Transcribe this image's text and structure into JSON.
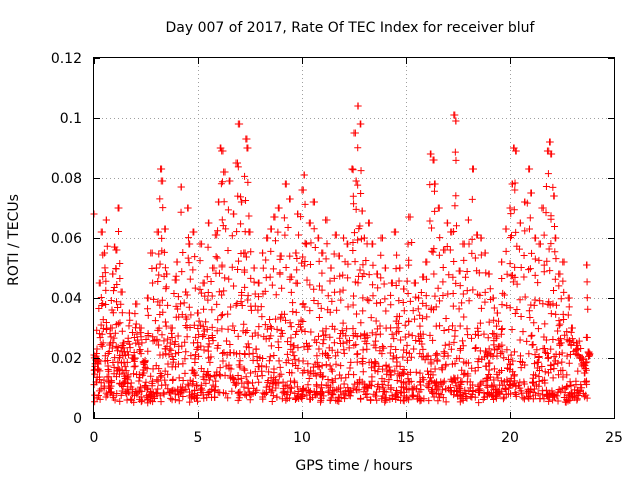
{
  "chart_data": {
    "type": "scatter",
    "title": "Day 007 of 2017, Rate Of TEC Index for receiver bluf",
    "xlabel": "GPS time / hours",
    "ylabel": "ROTI / TECUs",
    "xlim": [
      0,
      25
    ],
    "ylim": [
      0,
      0.12
    ],
    "xticks": [
      0,
      5,
      10,
      15,
      20,
      25
    ],
    "xtick_labels": [
      "0",
      "5",
      "10",
      "15",
      "20",
      "25"
    ],
    "yticks": [
      0,
      0.02,
      0.04,
      0.06,
      0.08,
      0.1,
      0.12
    ],
    "ytick_labels": [
      "0",
      "0.02",
      "0.04",
      "0.06",
      "0.08",
      "0.1",
      "0.12"
    ],
    "grid": true,
    "marker": "plus",
    "color": "#ff0000",
    "series": [
      {
        "points": [
          [
            0.0,
            0.068
          ],
          [
            0.1,
            0.012
          ],
          [
            0.2,
            0.018
          ],
          [
            0.3,
            0.045
          ],
          [
            0.4,
            0.062
          ],
          [
            0.5,
            0.055
          ],
          [
            0.6,
            0.066
          ],
          [
            0.7,
            0.01
          ],
          [
            0.8,
            0.03
          ],
          [
            0.9,
            0.048
          ],
          [
            1.0,
            0.057
          ],
          [
            1.1,
            0.056
          ],
          [
            1.2,
            0.07
          ],
          [
            1.3,
            0.042
          ],
          [
            1.4,
            0.025
          ],
          [
            1.5,
            0.012
          ],
          [
            1.7,
            0.035
          ],
          [
            1.9,
            0.02
          ],
          [
            2.0,
            0.038
          ],
          [
            2.2,
            0.03
          ],
          [
            2.4,
            0.015
          ],
          [
            2.6,
            0.04
          ],
          [
            2.8,
            0.055
          ],
          [
            3.0,
            0.05
          ],
          [
            3.1,
            0.062
          ],
          [
            3.2,
            0.083
          ],
          [
            3.3,
            0.079
          ],
          [
            3.4,
            0.063
          ],
          [
            3.5,
            0.048
          ],
          [
            3.7,
            0.03
          ],
          [
            3.9,
            0.046
          ],
          [
            4.0,
            0.052
          ],
          [
            4.2,
            0.077
          ],
          [
            4.4,
            0.042
          ],
          [
            4.5,
            0.07
          ],
          [
            4.6,
            0.058
          ],
          [
            4.8,
            0.062
          ],
          [
            5.0,
            0.035
          ],
          [
            5.1,
            0.058
          ],
          [
            5.3,
            0.045
          ],
          [
            5.5,
            0.065
          ],
          [
            5.7,
            0.05
          ],
          [
            5.9,
            0.061
          ],
          [
            6.0,
            0.072
          ],
          [
            6.1,
            0.09
          ],
          [
            6.2,
            0.089
          ],
          [
            6.3,
            0.082
          ],
          [
            6.5,
            0.079
          ],
          [
            6.7,
            0.068
          ],
          [
            6.9,
            0.085
          ],
          [
            7.0,
            0.098
          ],
          [
            7.1,
            0.072
          ],
          [
            7.2,
            0.055
          ],
          [
            7.3,
            0.093
          ],
          [
            7.4,
            0.09
          ],
          [
            7.5,
            0.062
          ],
          [
            7.7,
            0.05
          ],
          [
            7.9,
            0.045
          ],
          [
            8.1,
            0.055
          ],
          [
            8.3,
            0.06
          ],
          [
            8.5,
            0.063
          ],
          [
            8.7,
            0.067
          ],
          [
            8.9,
            0.07
          ],
          [
            9.0,
            0.054
          ],
          [
            9.2,
            0.078
          ],
          [
            9.4,
            0.073
          ],
          [
            9.5,
            0.047
          ],
          [
            9.7,
            0.055
          ],
          [
            9.8,
            0.068
          ],
          [
            10.0,
            0.076
          ],
          [
            10.1,
            0.081
          ],
          [
            10.2,
            0.058
          ],
          [
            10.4,
            0.065
          ],
          [
            10.6,
            0.072
          ],
          [
            10.8,
            0.06
          ],
          [
            11.0,
            0.055
          ],
          [
            11.2,
            0.066
          ],
          [
            11.4,
            0.05
          ],
          [
            11.6,
            0.061
          ],
          [
            11.8,
            0.054
          ],
          [
            12.0,
            0.06
          ],
          [
            12.2,
            0.058
          ],
          [
            12.4,
            0.083
          ],
          [
            12.5,
            0.095
          ],
          [
            12.6,
            0.079
          ],
          [
            12.7,
            0.104
          ],
          [
            12.8,
            0.098
          ],
          [
            12.9,
            0.069
          ],
          [
            13.0,
            0.06
          ],
          [
            13.2,
            0.065
          ],
          [
            13.4,
            0.058
          ],
          [
            13.6,
            0.048
          ],
          [
            13.8,
            0.06
          ],
          [
            14.0,
            0.05
          ],
          [
            14.3,
            0.045
          ],
          [
            14.5,
            0.062
          ],
          [
            14.7,
            0.05
          ],
          [
            14.9,
            0.043
          ],
          [
            15.1,
            0.058
          ],
          [
            15.2,
            0.067
          ],
          [
            15.4,
            0.045
          ],
          [
            15.6,
            0.04
          ],
          [
            15.8,
            0.047
          ],
          [
            16.0,
            0.052
          ],
          [
            16.2,
            0.088
          ],
          [
            16.3,
            0.086
          ],
          [
            16.4,
            0.078
          ],
          [
            16.6,
            0.07
          ],
          [
            16.8,
            0.056
          ],
          [
            17.0,
            0.065
          ],
          [
            17.2,
            0.062
          ],
          [
            17.3,
            0.101
          ],
          [
            17.4,
            0.099
          ],
          [
            17.6,
            0.049
          ],
          [
            17.8,
            0.058
          ],
          [
            18.0,
            0.066
          ],
          [
            18.2,
            0.083
          ],
          [
            18.4,
            0.061
          ],
          [
            18.6,
            0.06
          ],
          [
            18.8,
            0.055
          ],
          [
            19.0,
            0.048
          ],
          [
            19.2,
            0.04
          ],
          [
            19.4,
            0.035
          ],
          [
            19.6,
            0.052
          ],
          [
            19.8,
            0.063
          ],
          [
            20.0,
            0.07
          ],
          [
            20.1,
            0.078
          ],
          [
            20.2,
            0.09
          ],
          [
            20.3,
            0.089
          ],
          [
            20.5,
            0.065
          ],
          [
            20.7,
            0.072
          ],
          [
            20.9,
            0.083
          ],
          [
            21.0,
            0.075
          ],
          [
            21.2,
            0.06
          ],
          [
            21.4,
            0.058
          ],
          [
            21.6,
            0.07
          ],
          [
            21.8,
            0.089
          ],
          [
            21.9,
            0.092
          ],
          [
            22.0,
            0.088
          ],
          [
            22.1,
            0.074
          ],
          [
            22.2,
            0.06
          ],
          [
            22.4,
            0.048
          ],
          [
            22.6,
            0.052
          ],
          [
            22.8,
            0.04
          ],
          [
            23.0,
            0.03
          ],
          [
            23.2,
            0.025
          ],
          [
            23.4,
            0.02
          ],
          [
            23.6,
            0.015
          ],
          [
            23.7,
            0.051
          ],
          [
            23.8,
            0.022
          ]
        ],
        "band": {
          "x_range": [
            0.0,
            23.8
          ],
          "y_dense_range": [
            0.005,
            0.03
          ],
          "samples_per_hour": 52
        }
      }
    ]
  }
}
